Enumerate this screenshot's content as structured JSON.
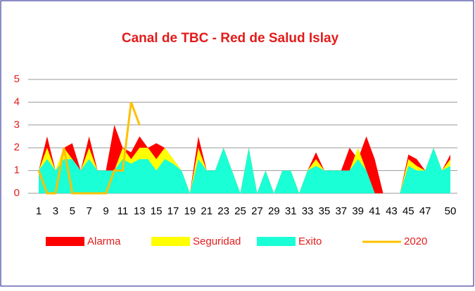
{
  "chart_data": {
    "type": "area",
    "title": "Canal de TBC - Red de Salud Islay",
    "categories": [
      "1",
      null,
      "3",
      null,
      "5",
      null,
      "7",
      null,
      "9",
      null,
      "11",
      null,
      "13",
      null,
      "15",
      null,
      "17",
      null,
      "19",
      null,
      "21",
      null,
      "23",
      null,
      "25",
      null,
      "27",
      null,
      "29",
      null,
      "31",
      null,
      "33",
      null,
      "35",
      null,
      "37",
      null,
      "39",
      null,
      "41",
      null,
      "43",
      null,
      "45",
      null,
      "47",
      null,
      null,
      "50"
    ],
    "series": [
      {
        "name": "Alarma",
        "color": "#ff0000",
        "kind": "area",
        "values": [
          1,
          2.5,
          1,
          2,
          2.2,
          1,
          2.5,
          1,
          1,
          3,
          2,
          1.8,
          2.5,
          2,
          2.2,
          2,
          1.5,
          1,
          0,
          2.5,
          1,
          1,
          2,
          1,
          0,
          2,
          0,
          1,
          0,
          1,
          1,
          0,
          1,
          1.8,
          1,
          1,
          1,
          2,
          1.5,
          2.5,
          1.5,
          0,
          0,
          0,
          1.7,
          1.5,
          1,
          2,
          1,
          1.7
        ]
      },
      {
        "name": "Seguridad",
        "color": "#ffff00",
        "kind": "area",
        "values": [
          1,
          2,
          1,
          2,
          1.5,
          1,
          2,
          1,
          1,
          1,
          2,
          1.5,
          2,
          2,
          1.5,
          2,
          1.5,
          1,
          0,
          2,
          1,
          1,
          2,
          1,
          0,
          2,
          0,
          1,
          0,
          1,
          1,
          0,
          1,
          1.5,
          1,
          1,
          1,
          1,
          2,
          1,
          0,
          0,
          0,
          0,
          1.5,
          1.2,
          1,
          2,
          1,
          1.5
        ]
      },
      {
        "name": "Exito",
        "color": "#1affd5",
        "kind": "area",
        "values": [
          1,
          1.5,
          1,
          1.5,
          1.5,
          1,
          1.5,
          1,
          1,
          1,
          1.5,
          1.3,
          1.5,
          1.5,
          1,
          1.5,
          1.3,
          1,
          0,
          1.5,
          1,
          1,
          2,
          1,
          0,
          2,
          0,
          1,
          0,
          1,
          1,
          0,
          1,
          1.2,
          1,
          1,
          1,
          1,
          1.5,
          1,
          0,
          0,
          0,
          0,
          1.2,
          1,
          1,
          2,
          1,
          1.2
        ]
      },
      {
        "name": "2020",
        "color": "#ffc000",
        "kind": "line",
        "values": [
          1,
          0,
          0,
          2,
          0,
          0,
          0,
          0,
          0,
          1,
          1,
          4,
          3,
          null,
          null,
          null,
          null,
          null,
          null,
          null,
          null,
          null,
          null,
          null,
          null,
          null,
          null,
          null,
          null,
          null,
          null,
          null,
          null,
          null,
          null,
          null,
          null,
          null,
          null,
          null,
          null,
          null,
          null,
          null,
          null,
          null,
          null,
          null,
          null,
          null
        ]
      }
    ],
    "ylim": [
      0,
      5
    ],
    "yticks": [
      0,
      1,
      2,
      3,
      4,
      5
    ],
    "grid": true
  }
}
